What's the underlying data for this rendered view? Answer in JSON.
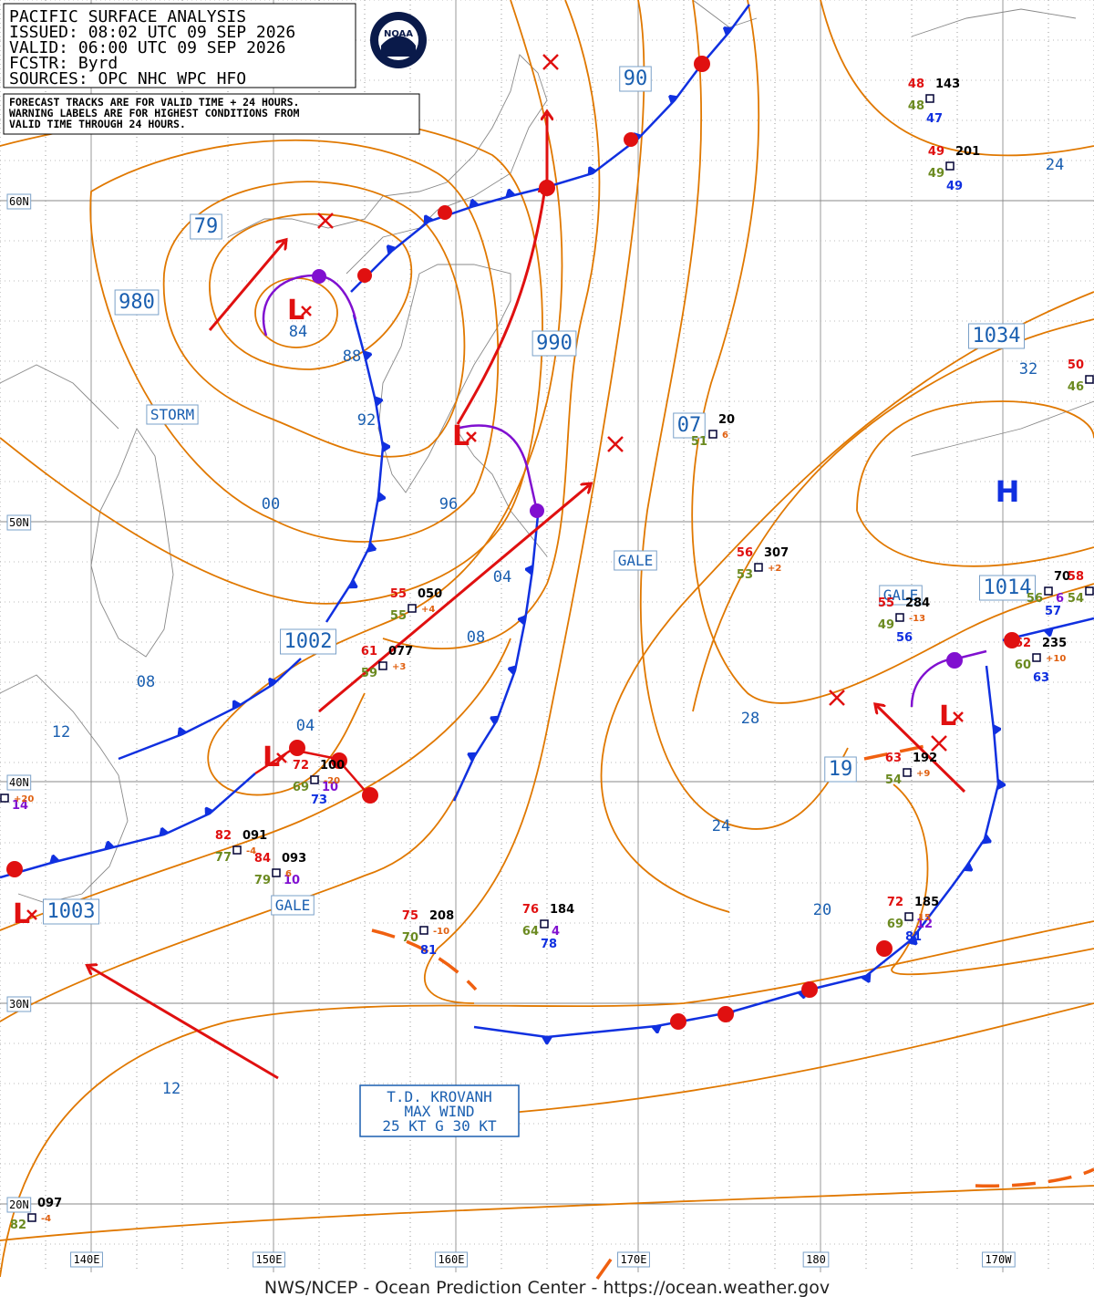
{
  "header": {
    "lines": [
      "PACIFIC SURFACE ANALYSIS",
      "ISSUED:  08:02 UTC 09 SEP 2026",
      "VALID:   06:00 UTC 09 SEP 2026",
      "FCSTR:   Byrd",
      "SOURCES:  OPC NHC WPC HFO"
    ]
  },
  "notice": {
    "lines": [
      "FORECAST TRACKS ARE FOR VALID TIME + 24 HOURS.",
      "WARNING LABELS ARE FOR HIGHEST CONDITIONS FROM",
      "VALID TIME THROUGH 24 HOURS."
    ]
  },
  "logo": "NOAA",
  "latitude_labels": [
    "60N",
    "50N",
    "40N",
    "30N",
    "20N"
  ],
  "longitude_labels": [
    "140E",
    "150E",
    "160E",
    "170E",
    "180",
    "170W"
  ],
  "isobar_labels": [
    "79",
    "980",
    "90",
    "990",
    "07",
    "1034",
    "1002",
    "1014",
    "19",
    "1003",
    "84",
    "88",
    "92",
    "00",
    "96",
    "04",
    "08",
    "08",
    "12",
    "04",
    "28",
    "24",
    "24",
    "20",
    "12",
    "32"
  ],
  "warnings": [
    "STORM",
    "GALE",
    "GALE",
    "GALE"
  ],
  "lows": [
    "L",
    "L",
    "L",
    "L",
    "L"
  ],
  "highs": [
    "H"
  ],
  "stations": [
    {
      "temp": "48",
      "pressure": "143",
      "dew": "48",
      "sst": "47"
    },
    {
      "temp": "49",
      "pressure": "201",
      "dew": "49",
      "sst": "49"
    },
    {
      "temp": "50",
      "dew": "46"
    },
    {
      "pressure": "20",
      "dew": "51",
      "tendency": "6"
    },
    {
      "temp": "56",
      "pressure": "307",
      "dew": "53",
      "tendency": "+2"
    },
    {
      "temp": "55",
      "pressure": "050",
      "dew": "55",
      "tendency": "+4"
    },
    {
      "temp": "61",
      "pressure": "077",
      "dew": "59",
      "tendency": "+3"
    },
    {
      "temp": "72",
      "pressure": "100",
      "dew": "69",
      "sst": "73",
      "other": "10",
      "tendency": "-20"
    },
    {
      "temp": "82",
      "pressure": "091",
      "dew": "77",
      "tendency": "-4"
    },
    {
      "temp": "84",
      "pressure": "093",
      "dew": "79",
      "other": "10",
      "tendency": "6"
    },
    {
      "temp": "75",
      "pressure": "208",
      "dew": "70",
      "sst": "81",
      "tendency": "-10"
    },
    {
      "temp": "76",
      "pressure": "184",
      "dew": "64",
      "sst": "78",
      "other": "4"
    },
    {
      "temp": "63",
      "pressure": "192",
      "dew": "54",
      "tendency": "+9"
    },
    {
      "temp": "72",
      "pressure": "185",
      "dew": "69",
      "sst": "81",
      "other": "12",
      "tendency": "15"
    },
    {
      "temp": "55",
      "pressure": "284",
      "dew": "49",
      "sst": "56",
      "tendency": "-13"
    },
    {
      "temp": "62",
      "pressure": "235",
      "dew": "60",
      "sst": "63",
      "tendency": "+10"
    },
    {
      "pressure": "70",
      "dew": "56",
      "sst": "57",
      "other": "6"
    },
    {
      "temp": "58",
      "dew": "54"
    },
    {
      "pressure": "097",
      "dew": "82",
      "tendency": "-4"
    },
    {
      "other": "14",
      "tendency": "+20"
    }
  ],
  "storm_box": {
    "lines": [
      "T.D. KROVANH",
      "MAX WIND",
      "25 KT G 30 KT"
    ]
  },
  "footer": "NWS/NCEP - Ocean Prediction Center - https://ocean.weather.gov"
}
